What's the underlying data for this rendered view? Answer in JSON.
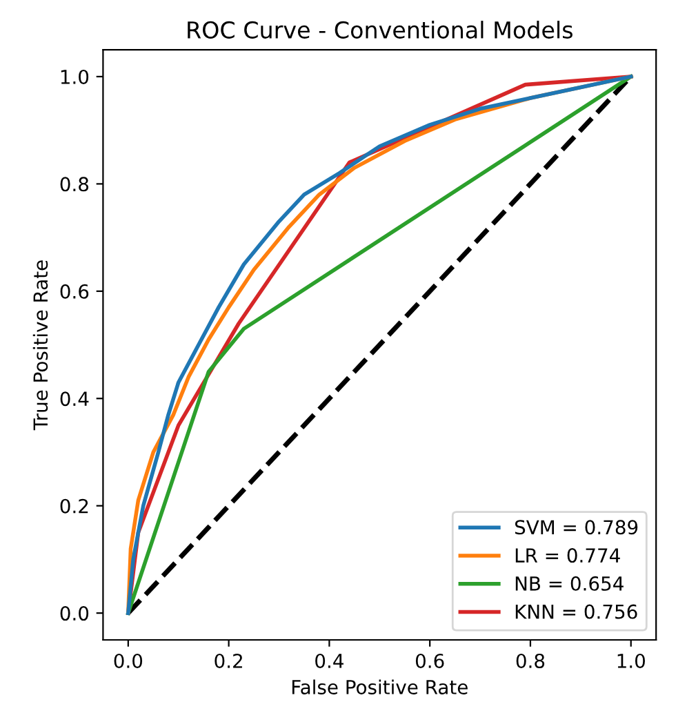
{
  "chart_data": {
    "type": "line",
    "title": "ROC Curve - Conventional Models",
    "xlabel": "False Positive Rate",
    "ylabel": "True Positive Rate",
    "xlim": [
      -0.05,
      1.05
    ],
    "ylim": [
      -0.05,
      1.05
    ],
    "xticks": [
      {
        "value": 0,
        "label": "0.0"
      },
      0.2,
      0.4,
      0.6,
      0.8,
      {
        "value": 1,
        "label": "1.0"
      }
    ],
    "yticks": [
      {
        "value": 0,
        "label": "0.0"
      },
      0.2,
      0.4,
      0.6,
      0.8,
      {
        "value": 1,
        "label": "1.0"
      }
    ],
    "grid": false,
    "legend": "bottom right",
    "line_style": "solid",
    "series": [
      {
        "name": "SVM = 0.789",
        "color": "#1f77b4",
        "x": [
          0,
          0.01,
          0.03,
          0.06,
          0.08,
          0.1,
          0.14,
          0.18,
          0.23,
          0.3,
          0.35,
          0.42,
          0.5,
          0.6,
          0.7,
          0.8,
          0.9,
          1
        ],
        "values": [
          0,
          0.1,
          0.2,
          0.3,
          0.37,
          0.43,
          0.5,
          0.57,
          0.65,
          0.73,
          0.78,
          0.82,
          0.87,
          0.91,
          0.94,
          0.96,
          0.98,
          1
        ]
      },
      {
        "name": "LR = 0.774",
        "color": "#ff7f0e",
        "x": [
          0,
          0.005,
          0.02,
          0.05,
          0.09,
          0.12,
          0.16,
          0.2,
          0.25,
          0.32,
          0.38,
          0.45,
          0.55,
          0.65,
          0.8,
          1
        ],
        "values": [
          0,
          0.12,
          0.21,
          0.3,
          0.37,
          0.44,
          0.51,
          0.57,
          0.64,
          0.72,
          0.78,
          0.83,
          0.88,
          0.92,
          0.96,
          1
        ]
      },
      {
        "name": "NB = 0.654",
        "color": "#2ca02c",
        "x": [
          0,
          0.16,
          0.23,
          1
        ],
        "values": [
          0,
          0.45,
          0.53,
          1
        ]
      },
      {
        "name": "KNN = 0.756",
        "color": "#d62728",
        "x": [
          0,
          0.02,
          0.1,
          0.22,
          0.44,
          0.79,
          1
        ],
        "values": [
          0,
          0.15,
          0.35,
          0.54,
          0.84,
          0.985,
          1
        ]
      },
      {
        "color": "#000000",
        "line_style": "dashed",
        "x": [
          0,
          1
        ],
        "values": [
          0,
          1
        ]
      }
    ]
  }
}
